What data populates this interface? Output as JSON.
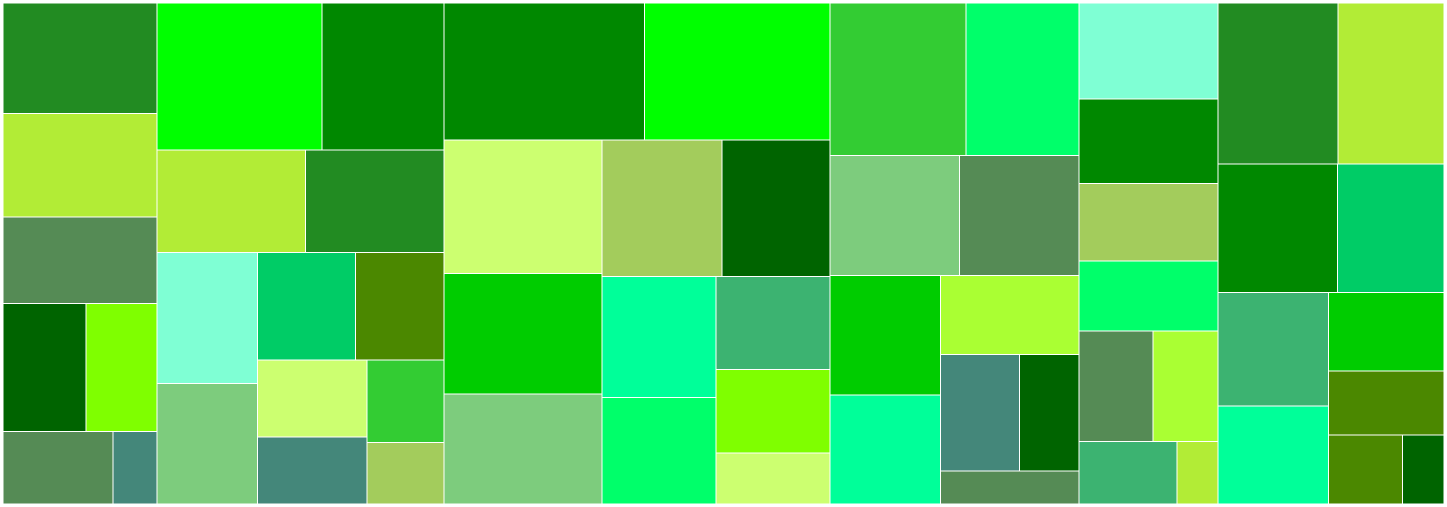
{
  "chart_data": {
    "type": "treemap",
    "title": "",
    "legend": "none",
    "palette": {
      "forest": "#228b22",
      "yellowgreen": "#b2ec36",
      "chartreuse": "#7fff00",
      "muted": "#558b55",
      "dark": "#006400",
      "teal": "#44877a",
      "lime": "#00ff00",
      "green": "#008800",
      "midgreen": "#33cc33",
      "emerald": "#00cc66",
      "aqua": "#7fffd4",
      "olive": "#4b8800",
      "pale": "#ccff70",
      "seafoam": "#7dcc7d",
      "spring": "#00ff6a",
      "sea": "#3cb371",
      "mint": "#00ff99",
      "khaki": "#a3cc5c",
      "bright": "#00cc00",
      "lawn": "#aaff33"
    },
    "groups": [
      {
        "name": "",
        "weight": 154,
        "children": [
          {
            "name": "",
            "value": 3.2,
            "color": "forest"
          },
          {
            "name": "",
            "value": 3.0,
            "color": "yellowgreen"
          },
          {
            "name": "",
            "value": 2.5,
            "color": "muted"
          },
          {
            "name": "",
            "value": 2.0,
            "color": "dark"
          },
          {
            "name": "",
            "value": 1.7,
            "color": "chartreuse"
          },
          {
            "name": "",
            "value": 1.5,
            "color": "muted"
          },
          {
            "name": "",
            "value": 0.6,
            "color": "teal"
          }
        ]
      },
      {
        "name": "",
        "weight": 287,
        "children": [
          {
            "name": "",
            "value": 4.6,
            "color": "lime"
          },
          {
            "name": "",
            "value": 3.4,
            "color": "green"
          },
          {
            "name": "",
            "value": 2.9,
            "color": "yellowgreen"
          },
          {
            "name": "",
            "value": 2.7,
            "color": "forest"
          },
          {
            "name": "",
            "value": 2.5,
            "color": "aqua"
          },
          {
            "name": "",
            "value": 2.3,
            "color": "seafoam"
          },
          {
            "name": "",
            "value": 2.0,
            "color": "emerald"
          },
          {
            "name": "",
            "value": 1.8,
            "color": "olive"
          },
          {
            "name": "",
            "value": 1.6,
            "color": "pale"
          },
          {
            "name": "",
            "value": 1.4,
            "color": "teal"
          },
          {
            "name": "",
            "value": 1.2,
            "color": "midgreen"
          },
          {
            "name": "",
            "value": 0.9,
            "color": "khaki"
          }
        ]
      },
      {
        "name": "",
        "weight": 386,
        "children": [
          {
            "name": "",
            "value": 5.2,
            "color": "green"
          },
          {
            "name": "",
            "value": 4.8,
            "color": "lime"
          },
          {
            "name": "",
            "value": 4.0,
            "color": "pale"
          },
          {
            "name": "",
            "value": 3.6,
            "color": "bright"
          },
          {
            "name": "",
            "value": 3.3,
            "color": "seafoam"
          },
          {
            "name": "",
            "value": 3.1,
            "color": "khaki"
          },
          {
            "name": "",
            "value": 2.8,
            "color": "dark"
          },
          {
            "name": "",
            "value": 2.6,
            "color": "mint"
          },
          {
            "name": "",
            "value": 2.3,
            "color": "spring"
          },
          {
            "name": "",
            "value": 2.0,
            "color": "sea"
          },
          {
            "name": "",
            "value": 1.8,
            "color": "chartreuse"
          },
          {
            "name": "",
            "value": 1.1,
            "color": "pale"
          }
        ]
      },
      {
        "name": "",
        "weight": 249,
        "children": [
          {
            "name": "",
            "value": 3.6,
            "color": "midgreen"
          },
          {
            "name": "",
            "value": 3.0,
            "color": "spring"
          },
          {
            "name": "",
            "value": 2.7,
            "color": "seafoam"
          },
          {
            "name": "",
            "value": 2.5,
            "color": "muted"
          },
          {
            "name": "",
            "value": 2.3,
            "color": "bright"
          },
          {
            "name": "",
            "value": 2.1,
            "color": "mint"
          },
          {
            "name": "",
            "value": 1.9,
            "color": "lawn"
          },
          {
            "name": "",
            "value": 1.6,
            "color": "teal"
          },
          {
            "name": "",
            "value": 1.2,
            "color": "dark"
          },
          {
            "name": "",
            "value": 0.8,
            "color": "muted"
          }
        ]
      },
      {
        "name": "",
        "weight": 139,
        "children": [
          {
            "name": "",
            "value": 2.6,
            "color": "aqua"
          },
          {
            "name": "",
            "value": 2.3,
            "color": "green"
          },
          {
            "name": "",
            "value": 2.1,
            "color": "khaki"
          },
          {
            "name": "",
            "value": 1.9,
            "color": "spring"
          },
          {
            "name": "",
            "value": 1.6,
            "color": "muted"
          },
          {
            "name": "",
            "value": 1.4,
            "color": "lawn"
          },
          {
            "name": "",
            "value": 1.2,
            "color": "sea"
          },
          {
            "name": "",
            "value": 0.5,
            "color": "yellowgreen"
          }
        ]
      },
      {
        "name": "",
        "weight": 226,
        "children": [
          {
            "name": "",
            "value": 3.4,
            "color": "forest"
          },
          {
            "name": "",
            "value": 3.0,
            "color": "yellowgreen"
          },
          {
            "name": "",
            "value": 2.7,
            "color": "green"
          },
          {
            "name": "",
            "value": 2.4,
            "color": "emerald"
          },
          {
            "name": "",
            "value": 2.2,
            "color": "sea"
          },
          {
            "name": "",
            "value": 1.9,
            "color": "mint"
          },
          {
            "name": "",
            "value": 1.6,
            "color": "bright"
          },
          {
            "name": "",
            "value": 1.3,
            "color": "olive"
          },
          {
            "name": "",
            "value": 0.9,
            "color": "olive"
          },
          {
            "name": "",
            "value": 0.5,
            "color": "dark"
          }
        ]
      }
    ]
  }
}
